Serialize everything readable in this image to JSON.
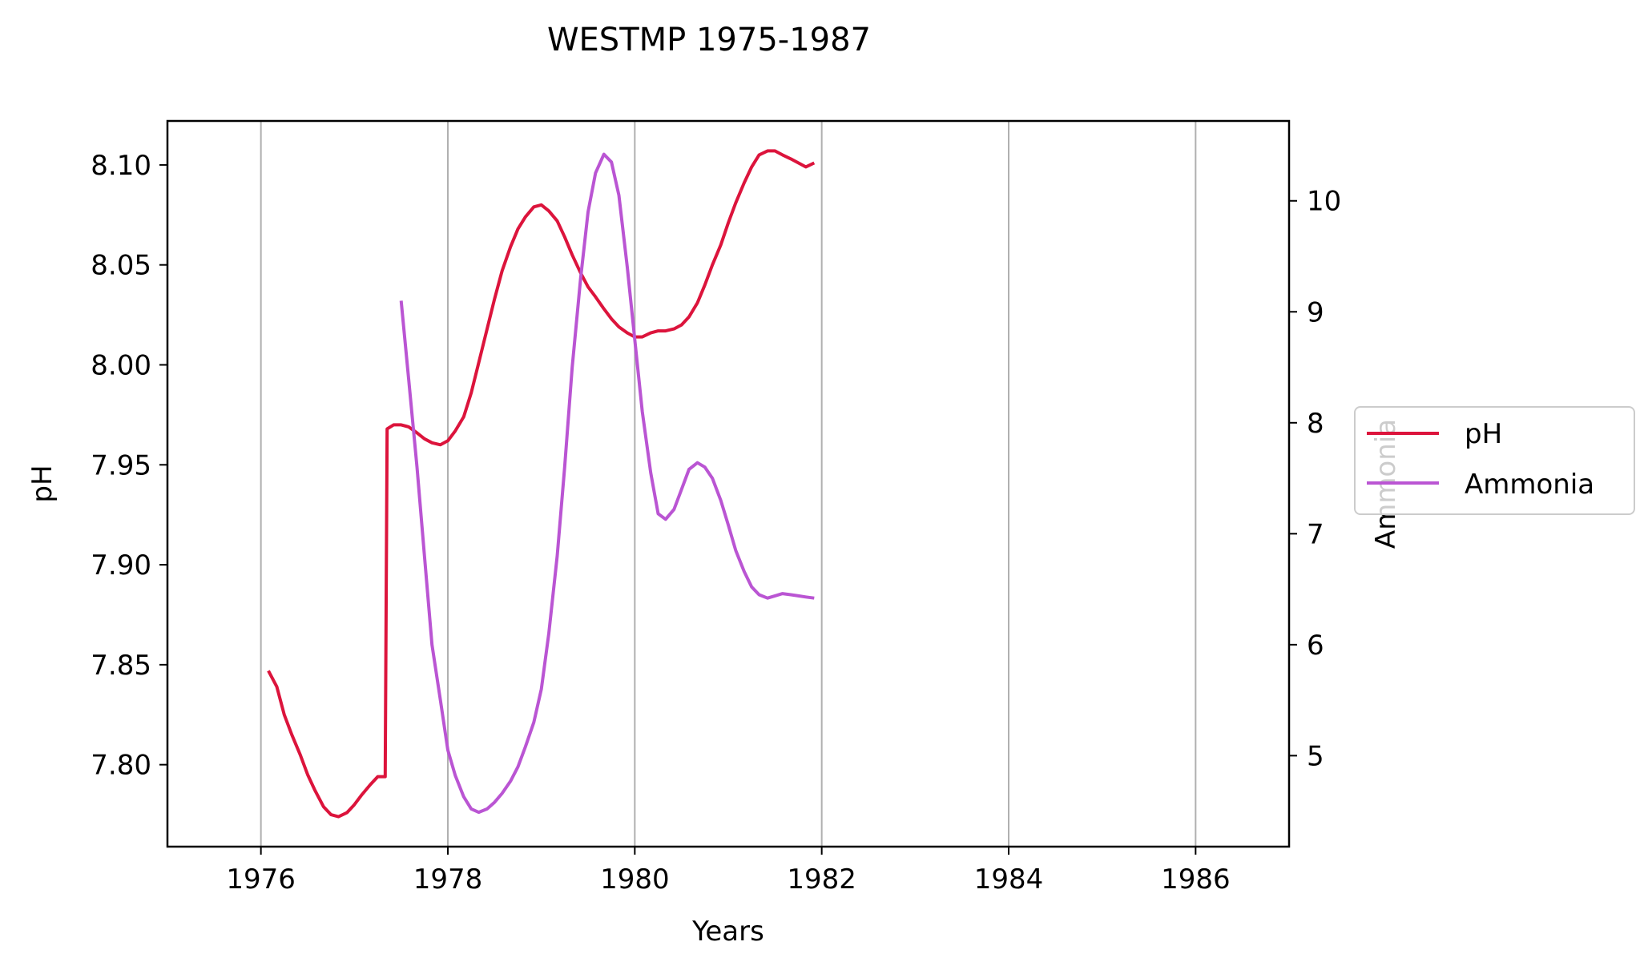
{
  "chart_data": {
    "type": "line",
    "title": "WESTMP 1975-1987",
    "xlabel": "Years",
    "ylabel": "pH",
    "y2label": "Ammonia",
    "xlim": [
      1975.0,
      1987.0
    ],
    "ylim": [
      7.759,
      8.122
    ],
    "y2lim": [
      4.18,
      10.72
    ],
    "x_ticks": [
      1976,
      1978,
      1980,
      1982,
      1984,
      1986
    ],
    "y_ticks": [
      "7.80",
      "7.85",
      "7.90",
      "7.95",
      "8.00",
      "8.05",
      "8.10"
    ],
    "y2_ticks": [
      "5",
      "6",
      "7",
      "8",
      "9",
      "10"
    ],
    "grid": "x-major",
    "legend_position": "right",
    "series": [
      {
        "name": "pH",
        "axis": "left",
        "color": "#dc143c",
        "x": [
          1976.08,
          1976.17,
          1976.25,
          1976.33,
          1976.42,
          1976.5,
          1976.58,
          1976.67,
          1976.75,
          1976.83,
          1976.92,
          1977.0,
          1977.08,
          1977.17,
          1977.25,
          1977.33,
          1977.35,
          1977.42,
          1977.5,
          1977.58,
          1977.67,
          1977.75,
          1977.83,
          1977.92,
          1978.0,
          1978.08,
          1978.17,
          1978.25,
          1978.33,
          1978.42,
          1978.5,
          1978.58,
          1978.67,
          1978.75,
          1978.83,
          1978.92,
          1979.0,
          1979.08,
          1979.17,
          1979.25,
          1979.33,
          1979.42,
          1979.5,
          1979.58,
          1979.67,
          1979.75,
          1979.83,
          1979.92,
          1980.0,
          1980.08,
          1980.17,
          1980.25,
          1980.33,
          1980.42,
          1980.5,
          1980.58,
          1980.67,
          1980.75,
          1980.83,
          1980.92,
          1981.0,
          1981.08,
          1981.17,
          1981.25,
          1981.33,
          1981.42,
          1981.5,
          1981.58,
          1981.67,
          1981.75,
          1981.83,
          1981.92
        ],
        "y": [
          7.847,
          7.839,
          7.825,
          7.815,
          7.805,
          7.795,
          7.787,
          7.779,
          7.775,
          7.774,
          7.776,
          7.78,
          7.785,
          7.79,
          7.794,
          7.794,
          7.968,
          7.97,
          7.97,
          7.969,
          7.966,
          7.963,
          7.961,
          7.96,
          7.962,
          7.967,
          7.974,
          7.986,
          8.001,
          8.018,
          8.033,
          8.047,
          8.059,
          8.068,
          8.074,
          8.079,
          8.08,
          8.077,
          8.072,
          8.064,
          8.055,
          8.046,
          8.039,
          8.034,
          8.028,
          8.023,
          8.019,
          8.016,
          8.014,
          8.014,
          8.016,
          8.017,
          8.017,
          8.018,
          8.02,
          8.024,
          8.031,
          8.04,
          8.05,
          8.06,
          8.071,
          8.081,
          8.091,
          8.099,
          8.105,
          8.107,
          8.107,
          8.105,
          8.103,
          8.101,
          8.099,
          8.101
        ]
      },
      {
        "name": "Ammonia",
        "axis": "right",
        "color": "#ba55d3",
        "x": [
          1977.5,
          1977.58,
          1977.67,
          1977.75,
          1977.83,
          1977.92,
          1978.0,
          1978.08,
          1978.17,
          1978.25,
          1978.33,
          1978.42,
          1978.5,
          1978.58,
          1978.67,
          1978.75,
          1978.83,
          1978.92,
          1979.0,
          1979.08,
          1979.17,
          1979.25,
          1979.33,
          1979.42,
          1979.5,
          1979.58,
          1979.67,
          1979.75,
          1979.83,
          1979.92,
          1980.0,
          1980.08,
          1980.17,
          1980.25,
          1980.33,
          1980.42,
          1980.5,
          1980.58,
          1980.67,
          1980.75,
          1980.83,
          1980.92,
          1981.0,
          1981.08,
          1981.17,
          1981.25,
          1981.33,
          1981.42,
          1981.5,
          1981.58,
          1981.67,
          1981.75,
          1981.83,
          1981.92
        ],
        "y": [
          9.1,
          8.4,
          7.6,
          6.8,
          6.0,
          5.5,
          5.05,
          4.82,
          4.63,
          4.52,
          4.49,
          4.52,
          4.58,
          4.66,
          4.77,
          4.9,
          5.08,
          5.3,
          5.6,
          6.1,
          6.8,
          7.6,
          8.5,
          9.3,
          9.9,
          10.25,
          10.42,
          10.35,
          10.05,
          9.4,
          8.75,
          8.1,
          7.55,
          7.18,
          7.13,
          7.22,
          7.4,
          7.58,
          7.64,
          7.6,
          7.5,
          7.3,
          7.08,
          6.85,
          6.66,
          6.52,
          6.45,
          6.42,
          6.44,
          6.46,
          6.45,
          6.44,
          6.43,
          6.42
        ]
      }
    ]
  }
}
